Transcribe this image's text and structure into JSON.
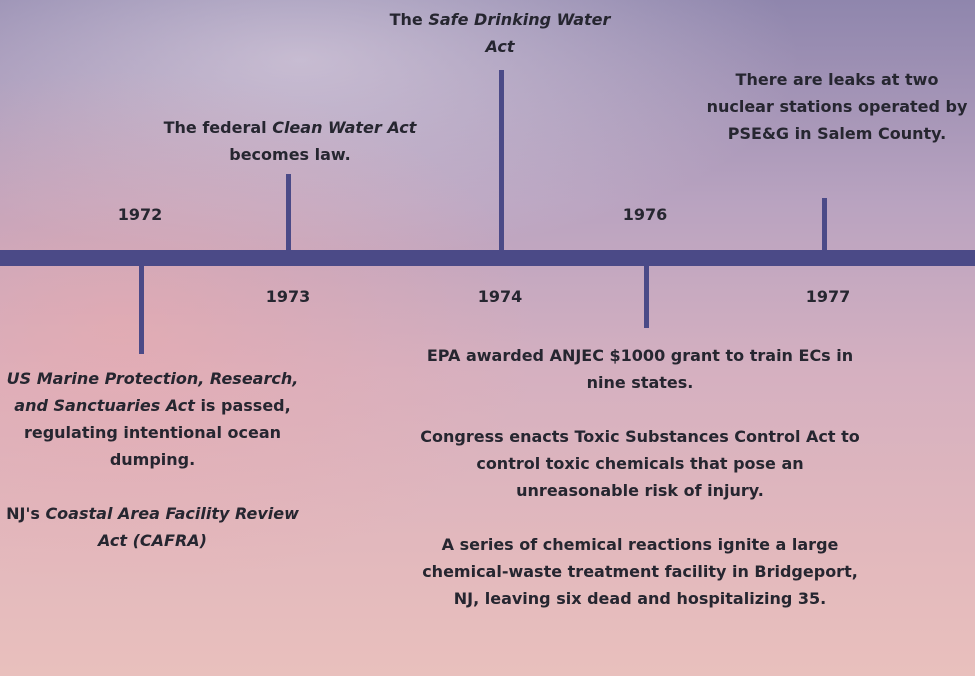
{
  "events": [
    {
      "year": "1972",
      "items": [
        {
          "segments": [
            {
              "text": "US Marine Protection, Research, and Sanctuaries Act",
              "italic": true
            },
            {
              "text": " is passed, regulating intentional ocean dumping."
            }
          ]
        },
        {
          "segments": [
            {
              "text": "NJ's "
            },
            {
              "text": "Coastal Area Facility Review Act (CAFRA)",
              "italic": true
            }
          ]
        }
      ]
    },
    {
      "year": "1973",
      "items": [
        {
          "segments": [
            {
              "text": "The federal "
            },
            {
              "text": "Clean Water Act",
              "italic": true
            },
            {
              "text": " becomes law."
            }
          ]
        }
      ]
    },
    {
      "year": "1974",
      "items": [
        {
          "segments": [
            {
              "text": "The "
            },
            {
              "text": "Safe Drinking Water Act",
              "italic": true
            }
          ]
        }
      ]
    },
    {
      "year": "1976",
      "items": [
        {
          "segments": [
            {
              "text": "EPA awarded ANJEC $1000 grant to train ECs in nine states."
            }
          ]
        },
        {
          "segments": [
            {
              "text": "Congress enacts Toxic Substances Control Act to control toxic chemicals that pose an unreasonable risk of injury."
            }
          ]
        },
        {
          "segments": [
            {
              "text": "A series of chemical reactions ignite a large chemical-waste treatment facility in Bridgeport, NJ, leaving six dead and hospitalizing 35."
            }
          ]
        }
      ]
    },
    {
      "year": "1977",
      "items": [
        {
          "segments": [
            {
              "text": "There are leaks at two nuclear stations operated by PSE&G in Salem County."
            }
          ]
        }
      ]
    }
  ]
}
